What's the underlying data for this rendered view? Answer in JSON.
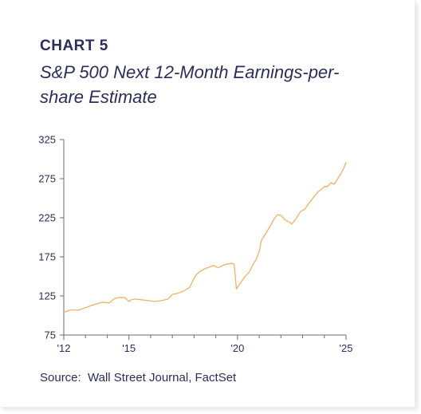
{
  "header": {
    "chart_label": "CHART 5",
    "title": "S&P 500 Next 12-Month Earnings-per-share Estimate"
  },
  "footer": {
    "source": "Source:  Wall Street Journal, FactSet"
  },
  "colors": {
    "line": "#f4b15e",
    "text": "#2b2d5e",
    "axis": "#6b6b6b"
  },
  "chart_data": {
    "type": "line",
    "title": "S&P 500 Next 12-Month Earnings-per-share Estimate",
    "xlabel": "",
    "ylabel": "",
    "xlim": [
      2012,
      2025
    ],
    "ylim": [
      75,
      325
    ],
    "grid": false,
    "x_ticks": [
      2012,
      2015,
      2020,
      2025
    ],
    "x_tick_labels": [
      "'12",
      "'15",
      "'20",
      "'25"
    ],
    "y_ticks": [
      75,
      125,
      175,
      225,
      275,
      325
    ],
    "y_tick_labels": [
      "75",
      "125",
      "175",
      "225",
      "275",
      "325"
    ],
    "series": [
      {
        "x": [
          2012.0,
          2012.3,
          2012.7,
          2013.0,
          2013.4,
          2013.8,
          2014.1,
          2014.3,
          2014.5,
          2014.8,
          2015.0,
          2015.1,
          2015.3,
          2015.6,
          2015.9,
          2016.2,
          2016.5,
          2016.8,
          2017.0,
          2017.2,
          2017.5,
          2017.8,
          2017.95,
          2018.1,
          2018.3,
          2018.6,
          2018.9,
          2019.1,
          2019.4,
          2019.6,
          2019.75,
          2019.85,
          2019.95,
          2020.1,
          2020.3,
          2020.55,
          2020.75,
          2020.85,
          2021.0,
          2021.1,
          2021.3,
          2021.5,
          2021.7,
          2021.85,
          2022.0,
          2022.2,
          2022.35,
          2022.5,
          2022.7,
          2022.9,
          2023.1,
          2023.3,
          2023.5,
          2023.7,
          2023.9,
          2024.0,
          2024.15,
          2024.3,
          2024.45,
          2024.6,
          2024.75,
          2024.9,
          2025.0
        ],
        "values": [
          104,
          107,
          107,
          110,
          114,
          117,
          116,
          121,
          123,
          123,
          118,
          120,
          121,
          120,
          119,
          118,
          119,
          121,
          127,
          128,
          131,
          136,
          145,
          152,
          157,
          161,
          164,
          161,
          165,
          166,
          167,
          165,
          134,
          140,
          148,
          156,
          167,
          171,
          182,
          196,
          205,
          214,
          224,
          229,
          228,
          222,
          220,
          217,
          224,
          233,
          236,
          244,
          251,
          258,
          262,
          265,
          265,
          270,
          268,
          274,
          281,
          289,
          296
        ]
      }
    ]
  }
}
